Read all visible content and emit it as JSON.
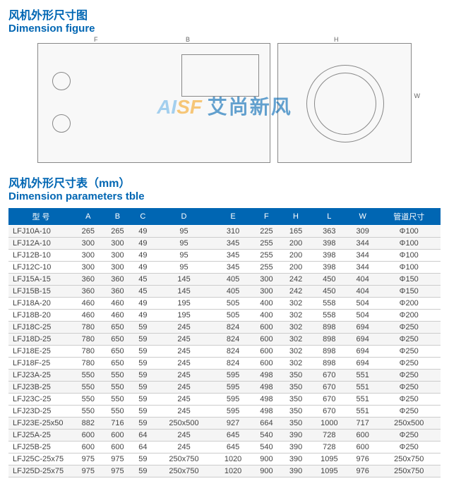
{
  "figure_section": {
    "title_cn": "风机外形尺寸图",
    "title_en": "Dimension figure",
    "diagram_labels": {
      "top_left": "F",
      "top_mid": "B",
      "right_top": "H",
      "right_mid": "W"
    }
  },
  "watermark": {
    "logo_left": "AI",
    "logo_right": "SF",
    "text_cn": "艾尚新风"
  },
  "table_section": {
    "title_cn": "风机外形尺寸表（mm）",
    "title_en": "Dimension parameters tble",
    "header_bg": "#0066b3",
    "header_fg": "#ffffff",
    "columns": [
      "型  号",
      "A",
      "B",
      "C",
      "D",
      "E",
      "F",
      "H",
      "L",
      "W",
      "管道尺寸"
    ],
    "rows": [
      [
        "LFJ10A-10",
        "265",
        "265",
        "49",
        "95",
        "310",
        "225",
        "165",
        "363",
        "309",
        "Φ100"
      ],
      [
        "LFJ12A-10",
        "300",
        "300",
        "49",
        "95",
        "345",
        "255",
        "200",
        "398",
        "344",
        "Φ100"
      ],
      [
        "LFJ12B-10",
        "300",
        "300",
        "49",
        "95",
        "345",
        "255",
        "200",
        "398",
        "344",
        "Φ100"
      ],
      [
        "LFJ12C-10",
        "300",
        "300",
        "49",
        "95",
        "345",
        "255",
        "200",
        "398",
        "344",
        "Φ100"
      ],
      [
        "LFJ15A-15",
        "360",
        "360",
        "45",
        "145",
        "405",
        "300",
        "242",
        "450",
        "404",
        "Φ150"
      ],
      [
        "LFJ15B-15",
        "360",
        "360",
        "45",
        "145",
        "405",
        "300",
        "242",
        "450",
        "404",
        "Φ150"
      ],
      [
        "LFJ18A-20",
        "460",
        "460",
        "49",
        "195",
        "505",
        "400",
        "302",
        "558",
        "504",
        "Φ200"
      ],
      [
        "LFJ18B-20",
        "460",
        "460",
        "49",
        "195",
        "505",
        "400",
        "302",
        "558",
        "504",
        "Φ200"
      ],
      [
        "LFJ18C-25",
        "780",
        "650",
        "59",
        "245",
        "824",
        "600",
        "302",
        "898",
        "694",
        "Φ250"
      ],
      [
        "LFJ18D-25",
        "780",
        "650",
        "59",
        "245",
        "824",
        "600",
        "302",
        "898",
        "694",
        "Φ250"
      ],
      [
        "LFJ18E-25",
        "780",
        "650",
        "59",
        "245",
        "824",
        "600",
        "302",
        "898",
        "694",
        "Φ250"
      ],
      [
        "LFJ18F-25",
        "780",
        "650",
        "59",
        "245",
        "824",
        "600",
        "302",
        "898",
        "694",
        "Φ250"
      ],
      [
        "LFJ23A-25",
        "550",
        "550",
        "59",
        "245",
        "595",
        "498",
        "350",
        "670",
        "551",
        "Φ250"
      ],
      [
        "LFJ23B-25",
        "550",
        "550",
        "59",
        "245",
        "595",
        "498",
        "350",
        "670",
        "551",
        "Φ250"
      ],
      [
        "LFJ23C-25",
        "550",
        "550",
        "59",
        "245",
        "595",
        "498",
        "350",
        "670",
        "551",
        "Φ250"
      ],
      [
        "LFJ23D-25",
        "550",
        "550",
        "59",
        "245",
        "595",
        "498",
        "350",
        "670",
        "551",
        "Φ250"
      ],
      [
        "LFJ23E-25x50",
        "882",
        "716",
        "59",
        "250x500",
        "927",
        "664",
        "350",
        "1000",
        "717",
        "250x500"
      ],
      [
        "LFJ25A-25",
        "600",
        "600",
        "64",
        "245",
        "645",
        "540",
        "390",
        "728",
        "600",
        "Φ250"
      ],
      [
        "LFJ25B-25",
        "600",
        "600",
        "64",
        "245",
        "645",
        "540",
        "390",
        "728",
        "600",
        "Φ250"
      ],
      [
        "LFJ25C-25x75",
        "975",
        "975",
        "59",
        "250x750",
        "1020",
        "900",
        "390",
        "1095",
        "976",
        "250x750"
      ],
      [
        "LFJ25D-25x75",
        "975",
        "975",
        "59",
        "250x750",
        "1020",
        "900",
        "390",
        "1095",
        "976",
        "250x750"
      ]
    ]
  }
}
